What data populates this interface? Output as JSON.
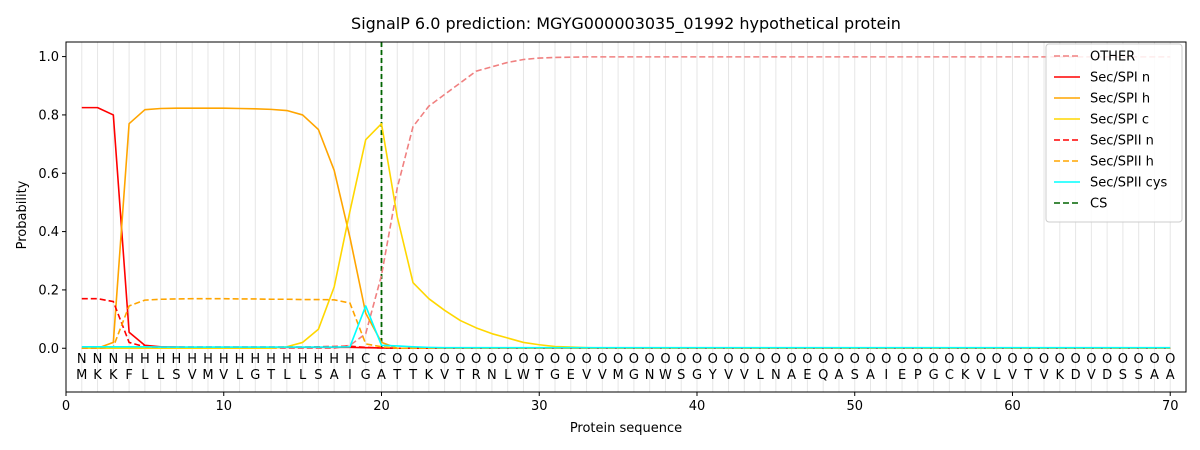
{
  "chart_data": {
    "type": "line",
    "title": "SignalP 6.0 prediction: MGYG000003035_01992 hypothetical protein",
    "xlabel": "Protein sequence",
    "ylabel": "Probability",
    "xlim": [
      0,
      71
    ],
    "ylim": [
      -0.15,
      1.05
    ],
    "x_ticks": [
      0,
      10,
      20,
      30,
      40,
      50,
      60,
      70
    ],
    "y_ticks": [
      0.0,
      0.2,
      0.4,
      0.6,
      0.8,
      1.0
    ],
    "x_tick_labels": [
      "0",
      "10",
      "20",
      "30",
      "40",
      "50",
      "60",
      "70"
    ],
    "y_tick_labels": [
      "0.0",
      "0.2",
      "0.4",
      "0.6",
      "0.8",
      "1.0"
    ],
    "grid": "vertical lines at each residue",
    "legend_position": "top-right",
    "sequence": [
      "M",
      "K",
      "K",
      "F",
      "L",
      "L",
      "S",
      "V",
      "M",
      "V",
      "L",
      "G",
      "T",
      "L",
      "L",
      "S",
      "A",
      "I",
      "G",
      "A",
      "T",
      "T",
      "K",
      "V",
      "T",
      "R",
      "N",
      "L",
      "W",
      "T",
      "G",
      "E",
      "V",
      "V",
      "M",
      "G",
      "N",
      "W",
      "S",
      "G",
      "Y",
      "V",
      "V",
      "L",
      "N",
      "A",
      "E",
      "Q",
      "A",
      "S",
      "A",
      "I",
      "E",
      "P",
      "G",
      "C",
      "K",
      "V",
      "L",
      "V",
      "T",
      "V",
      "K",
      "D",
      "V",
      "D",
      "S",
      "S",
      "A",
      "A"
    ],
    "region_labels": [
      "N",
      "N",
      "N",
      "H",
      "H",
      "H",
      "H",
      "H",
      "H",
      "H",
      "H",
      "H",
      "H",
      "H",
      "H",
      "H",
      "H",
      "H",
      "C",
      "C",
      "O",
      "O",
      "O",
      "O",
      "O",
      "O",
      "O",
      "O",
      "O",
      "O",
      "O",
      "O",
      "O",
      "O",
      "O",
      "O",
      "O",
      "O",
      "O",
      "O",
      "O",
      "O",
      "O",
      "O",
      "O",
      "O",
      "O",
      "O",
      "O",
      "O",
      "O",
      "O",
      "O",
      "O",
      "O",
      "O",
      "O",
      "O",
      "O",
      "O",
      "O",
      "O",
      "O",
      "O",
      "O",
      "O",
      "O",
      "O",
      "O",
      "O"
    ],
    "region_colors": {
      "N": "#ff0000",
      "H": "#ffa500",
      "C": "#ffd700",
      "O": "#808080"
    },
    "cs_position": 20,
    "series": [
      {
        "name": "OTHER",
        "color": "#f08080",
        "dash": "dashed",
        "values": [
          0.0,
          0.0,
          0.0,
          0.0,
          0.0,
          0.0,
          0.0,
          0.0,
          0.0,
          0.0,
          0.0,
          0.0,
          0.0,
          0.0,
          0.0,
          0.0,
          0.0,
          0.01,
          0.05,
          0.25,
          0.55,
          0.76,
          0.83,
          0.87,
          0.91,
          0.95,
          0.965,
          0.98,
          0.99,
          0.995,
          0.997,
          0.998,
          0.999,
          0.999,
          0.999,
          0.999,
          0.999,
          0.999,
          0.999,
          0.999,
          0.999,
          0.999,
          0.999,
          0.999,
          0.999,
          0.999,
          0.999,
          0.999,
          0.999,
          0.999,
          0.999,
          0.999,
          0.999,
          0.999,
          0.999,
          0.999,
          0.999,
          0.999,
          0.999,
          0.999,
          0.999,
          0.999,
          0.999,
          0.999,
          0.999,
          0.999,
          0.999,
          0.999,
          0.999,
          0.999
        ]
      },
      {
        "name": "Sec/SPI n",
        "color": "#ff0000",
        "dash": "solid",
        "values": [
          0.825,
          0.825,
          0.8,
          0.055,
          0.01,
          0.005,
          0.004,
          0.003,
          0.003,
          0.003,
          0.003,
          0.003,
          0.003,
          0.003,
          0.003,
          0.003,
          0.003,
          0.003,
          0.002,
          0.001,
          0.0,
          0.0,
          0.0,
          0.0,
          0.0,
          0.0,
          0.0,
          0.0,
          0.0,
          0.0,
          0.0,
          0.0,
          0.0,
          0.0,
          0.0,
          0.0,
          0.0,
          0.0,
          0.0,
          0.0,
          0.0,
          0.0,
          0.0,
          0.0,
          0.0,
          0.0,
          0.0,
          0.0,
          0.0,
          0.0,
          0.0,
          0.0,
          0.0,
          0.0,
          0.0,
          0.0,
          0.0,
          0.0,
          0.0,
          0.0,
          0.0,
          0.0,
          0.0,
          0.0,
          0.0,
          0.0,
          0.0,
          0.0,
          0.0,
          0.0
        ]
      },
      {
        "name": "Sec/SPI h",
        "color": "#ffa500",
        "dash": "solid",
        "values": [
          0.0,
          0.0,
          0.02,
          0.77,
          0.818,
          0.822,
          0.823,
          0.823,
          0.823,
          0.823,
          0.822,
          0.821,
          0.819,
          0.815,
          0.8,
          0.75,
          0.61,
          0.38,
          0.12,
          0.02,
          0.0,
          0.0,
          0.0,
          0.0,
          0.0,
          0.0,
          0.0,
          0.0,
          0.0,
          0.0,
          0.0,
          0.0,
          0.0,
          0.0,
          0.0,
          0.0,
          0.0,
          0.0,
          0.0,
          0.0,
          0.0,
          0.0,
          0.0,
          0.0,
          0.0,
          0.0,
          0.0,
          0.0,
          0.0,
          0.0,
          0.0,
          0.0,
          0.0,
          0.0,
          0.0,
          0.0,
          0.0,
          0.0,
          0.0,
          0.0,
          0.0,
          0.0,
          0.0,
          0.0,
          0.0,
          0.0,
          0.0,
          0.0,
          0.0,
          0.0
        ]
      },
      {
        "name": "Sec/SPI c",
        "color": "#ffd700",
        "dash": "solid",
        "values": [
          0.0,
          0.0,
          0.0,
          0.0,
          0.0,
          0.0,
          0.0,
          0.0,
          0.0,
          0.0,
          0.0,
          0.0,
          0.0,
          0.005,
          0.02,
          0.065,
          0.21,
          0.47,
          0.715,
          0.77,
          0.45,
          0.225,
          0.17,
          0.13,
          0.095,
          0.07,
          0.05,
          0.035,
          0.02,
          0.012,
          0.006,
          0.004,
          0.002,
          0.001,
          0.0,
          0.0,
          0.0,
          0.0,
          0.0,
          0.0,
          0.0,
          0.0,
          0.0,
          0.0,
          0.0,
          0.0,
          0.0,
          0.0,
          0.0,
          0.0,
          0.0,
          0.0,
          0.0,
          0.0,
          0.0,
          0.0,
          0.0,
          0.0,
          0.0,
          0.0,
          0.0,
          0.0,
          0.0,
          0.0,
          0.0,
          0.0,
          0.0,
          0.0,
          0.0,
          0.0
        ]
      },
      {
        "name": "Sec/SPII n",
        "color": "#ff0000",
        "dash": "dashed",
        "values": [
          0.17,
          0.17,
          0.16,
          0.02,
          0.005,
          0.004,
          0.004,
          0.004,
          0.004,
          0.004,
          0.004,
          0.004,
          0.004,
          0.004,
          0.004,
          0.005,
          0.006,
          0.007,
          0.003,
          0.001,
          0.0,
          0.0,
          0.0,
          0.0,
          0.0,
          0.0,
          0.0,
          0.0,
          0.0,
          0.0,
          0.0,
          0.0,
          0.0,
          0.0,
          0.0,
          0.0,
          0.0,
          0.0,
          0.0,
          0.0,
          0.0,
          0.0,
          0.0,
          0.0,
          0.0,
          0.0,
          0.0,
          0.0,
          0.0,
          0.0,
          0.0,
          0.0,
          0.0,
          0.0,
          0.0,
          0.0,
          0.0,
          0.0,
          0.0,
          0.0,
          0.0,
          0.0,
          0.0,
          0.0,
          0.0,
          0.0,
          0.0,
          0.0,
          0.0,
          0.0
        ]
      },
      {
        "name": "Sec/SPII h",
        "color": "#ffa500",
        "dash": "dashed",
        "values": [
          0.0,
          0.0,
          0.005,
          0.145,
          0.165,
          0.168,
          0.169,
          0.17,
          0.17,
          0.17,
          0.169,
          0.169,
          0.168,
          0.168,
          0.167,
          0.167,
          0.166,
          0.155,
          0.015,
          0.005,
          0.0,
          0.0,
          0.0,
          0.0,
          0.0,
          0.0,
          0.0,
          0.0,
          0.0,
          0.0,
          0.0,
          0.0,
          0.0,
          0.0,
          0.0,
          0.0,
          0.0,
          0.0,
          0.0,
          0.0,
          0.0,
          0.0,
          0.0,
          0.0,
          0.0,
          0.0,
          0.0,
          0.0,
          0.0,
          0.0,
          0.0,
          0.0,
          0.0,
          0.0,
          0.0,
          0.0,
          0.0,
          0.0,
          0.0,
          0.0,
          0.0,
          0.0,
          0.0,
          0.0,
          0.0,
          0.0,
          0.0,
          0.0,
          0.0,
          0.0
        ]
      },
      {
        "name": "Sec/SPII cys",
        "color": "#00ffff",
        "dash": "solid",
        "values": [
          0.005,
          0.005,
          0.005,
          0.005,
          0.005,
          0.004,
          0.004,
          0.004,
          0.004,
          0.004,
          0.004,
          0.004,
          0.004,
          0.004,
          0.004,
          0.004,
          0.004,
          0.005,
          0.145,
          0.01,
          0.008,
          0.005,
          0.003,
          0.002,
          0.002,
          0.002,
          0.002,
          0.002,
          0.002,
          0.002,
          0.002,
          0.002,
          0.002,
          0.002,
          0.002,
          0.002,
          0.002,
          0.002,
          0.002,
          0.002,
          0.002,
          0.002,
          0.002,
          0.002,
          0.002,
          0.002,
          0.002,
          0.002,
          0.002,
          0.002,
          0.002,
          0.002,
          0.002,
          0.002,
          0.002,
          0.002,
          0.002,
          0.002,
          0.002,
          0.002,
          0.002,
          0.002,
          0.002,
          0.002,
          0.002,
          0.002,
          0.002,
          0.002,
          0.002,
          0.002
        ]
      },
      {
        "name": "CS",
        "color": "#006400",
        "dash": "dashed",
        "vertical_at": 20
      }
    ]
  }
}
